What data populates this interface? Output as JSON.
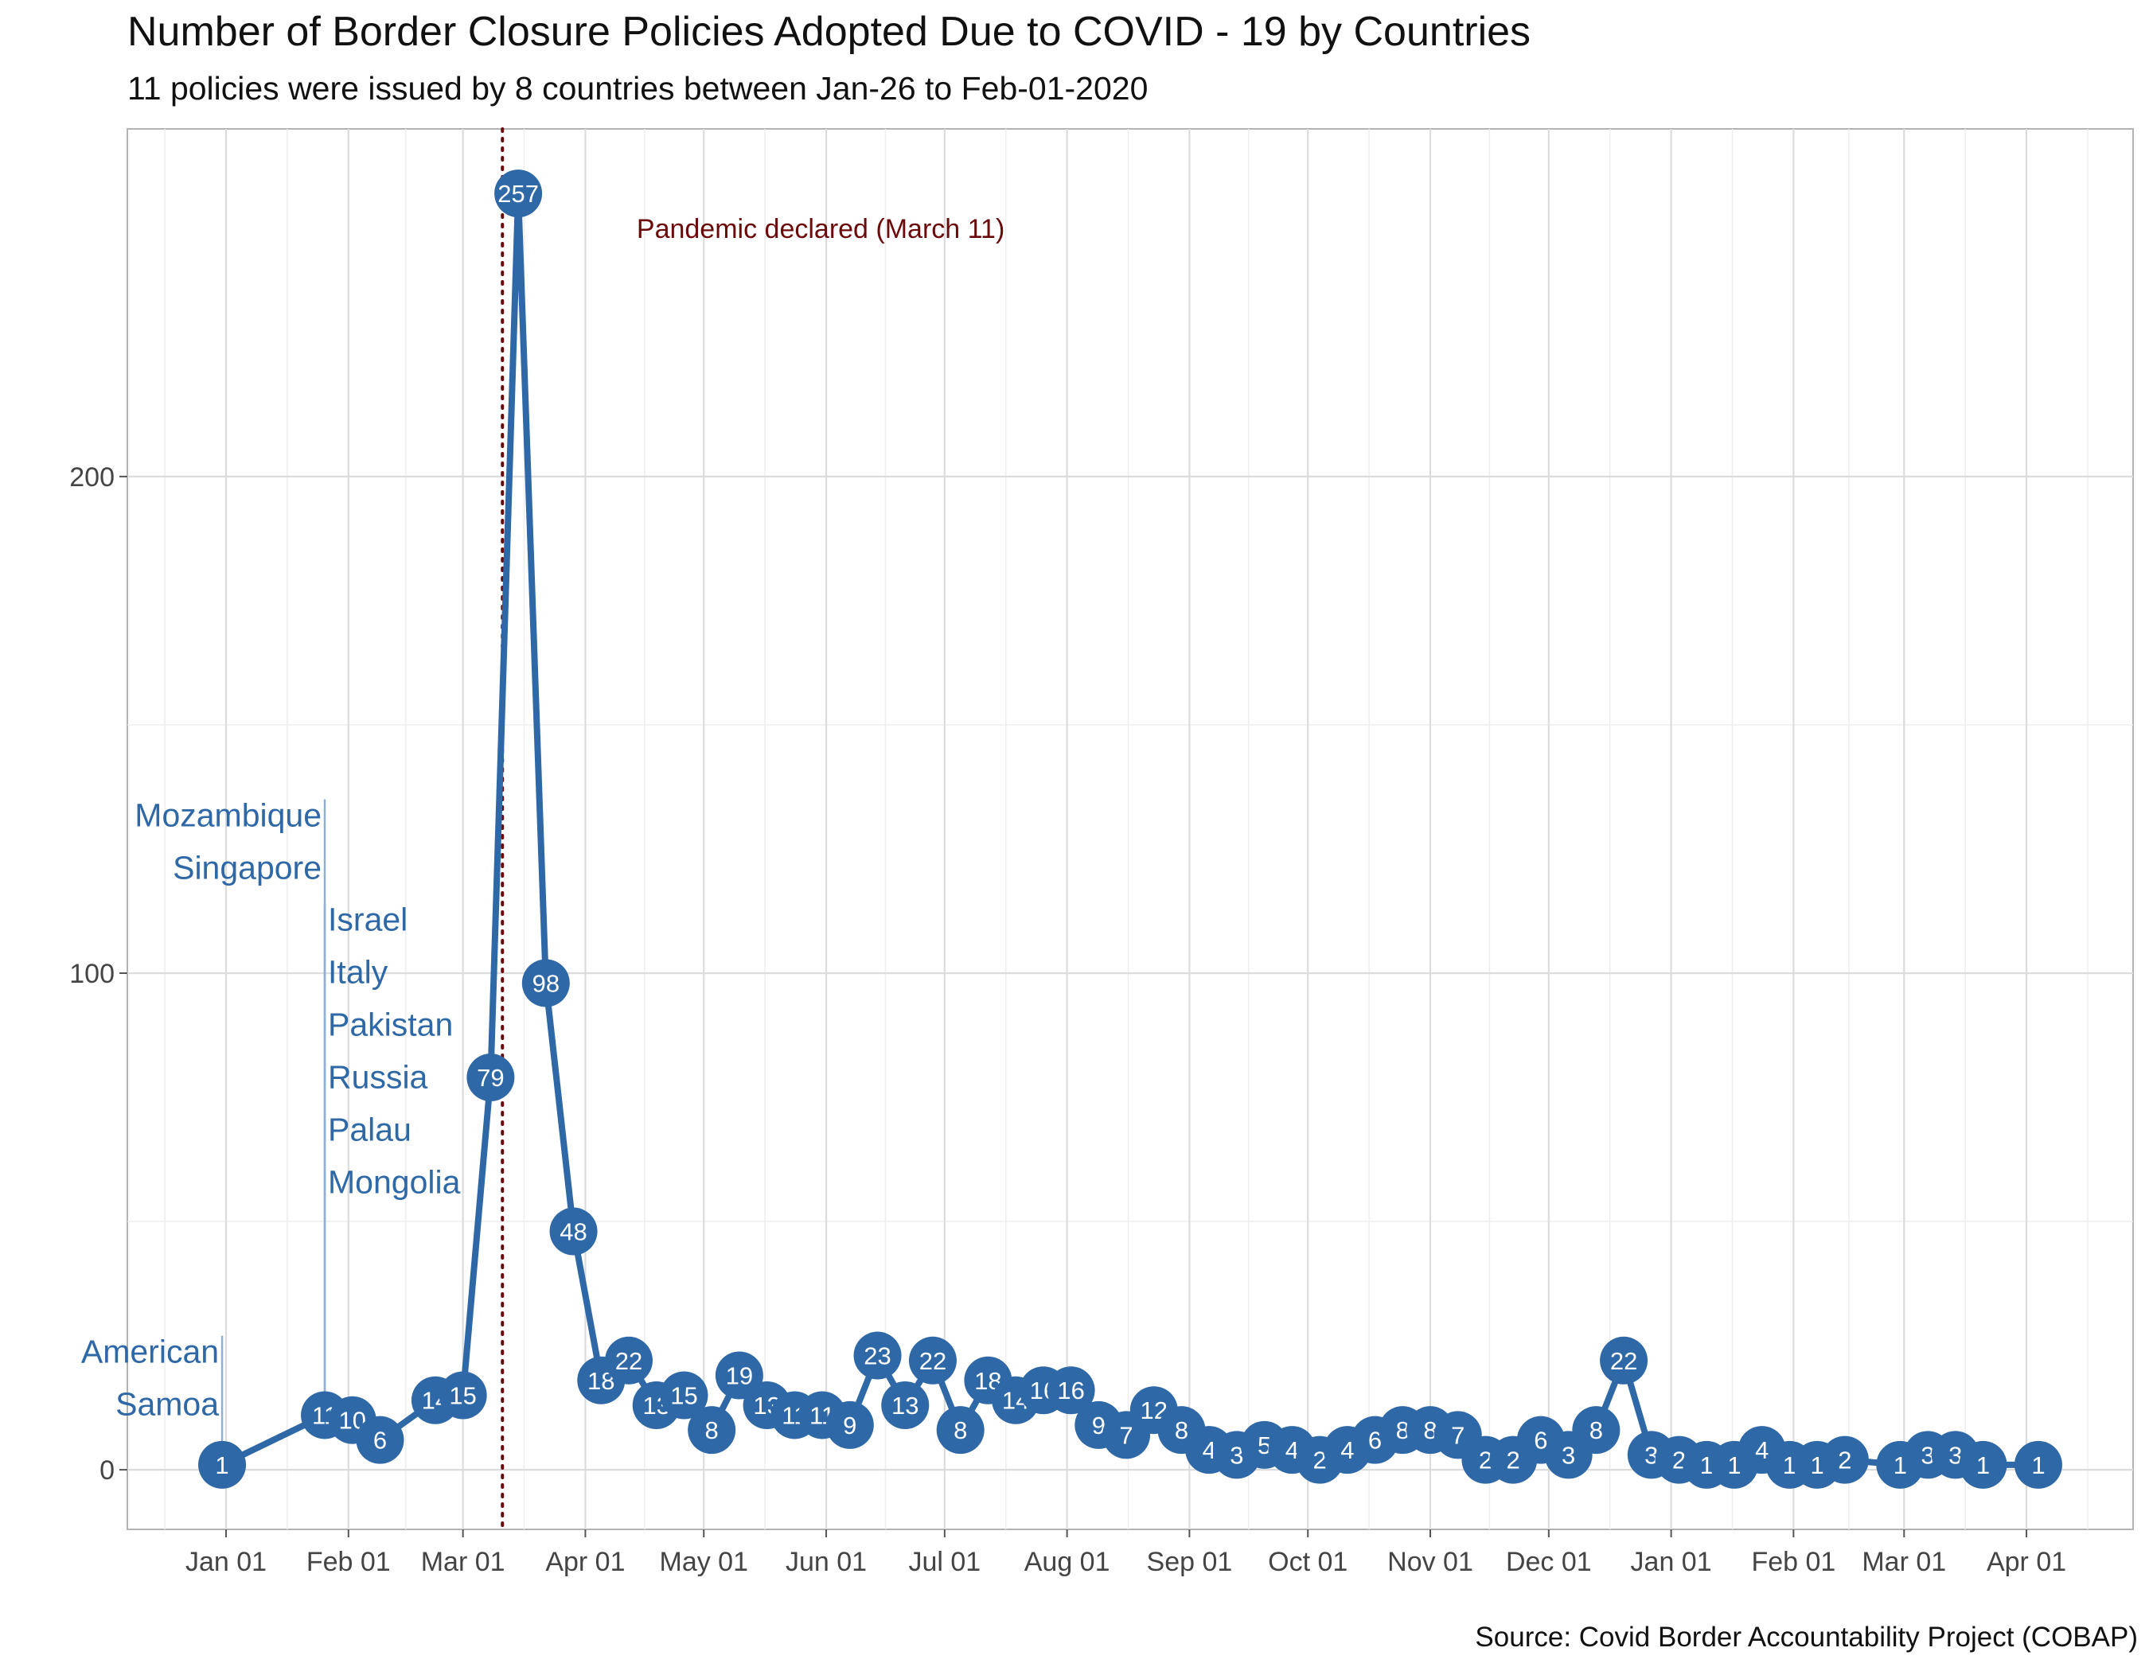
{
  "chart_data": {
    "type": "line",
    "title": "Number of Border Closure Policies Adopted Due to COVID - 19 by Countries",
    "subtitle": "11 policies were issued by 8 countries between Jan-26 to Feb-01-2020",
    "caption": "Source: Covid Border Accountability Project (COBAP)",
    "xlabel": "",
    "ylabel": "",
    "x_range": [
      "2019-12-07",
      "2021-04-28"
    ],
    "ylim": [
      -12,
      270
    ],
    "y_ticks": [
      0,
      100,
      200
    ],
    "x_ticks": [
      {
        "date": "2020-01-01",
        "label": "Jan 01"
      },
      {
        "date": "2020-02-01",
        "label": "Feb 01"
      },
      {
        "date": "2020-03-01",
        "label": "Mar 01"
      },
      {
        "date": "2020-04-01",
        "label": "Apr 01"
      },
      {
        "date": "2020-05-01",
        "label": "May 01"
      },
      {
        "date": "2020-06-01",
        "label": "Jun 01"
      },
      {
        "date": "2020-07-01",
        "label": "Jul 01"
      },
      {
        "date": "2020-08-01",
        "label": "Aug 01"
      },
      {
        "date": "2020-09-01",
        "label": "Sep 01"
      },
      {
        "date": "2020-10-01",
        "label": "Oct 01"
      },
      {
        "date": "2020-11-01",
        "label": "Nov 01"
      },
      {
        "date": "2020-12-01",
        "label": "Dec 01"
      },
      {
        "date": "2021-01-01",
        "label": "Jan 01"
      },
      {
        "date": "2021-02-01",
        "label": "Feb 01"
      },
      {
        "date": "2021-03-01",
        "label": "Mar 01"
      },
      {
        "date": "2021-04-01",
        "label": "Apr 01"
      }
    ],
    "grid": true,
    "line_color": "#2f68a7",
    "point_color": "#2f68a7",
    "series": [
      {
        "points": [
          {
            "x": "2019-12-31",
            "y": 1
          },
          {
            "x": "2020-01-26",
            "y": 11
          },
          {
            "x": "2020-02-02",
            "y": 10
          },
          {
            "x": "2020-02-09",
            "y": 6
          },
          {
            "x": "2020-02-23",
            "y": 14
          },
          {
            "x": "2020-03-01",
            "y": 15
          },
          {
            "x": "2020-03-08",
            "y": 79
          },
          {
            "x": "2020-03-15",
            "y": 257
          },
          {
            "x": "2020-03-22",
            "y": 98
          },
          {
            "x": "2020-03-29",
            "y": 48
          },
          {
            "x": "2020-04-05",
            "y": 18
          },
          {
            "x": "2020-04-12",
            "y": 22
          },
          {
            "x": "2020-04-19",
            "y": 13
          },
          {
            "x": "2020-04-26",
            "y": 15
          },
          {
            "x": "2020-05-03",
            "y": 8
          },
          {
            "x": "2020-05-10",
            "y": 19
          },
          {
            "x": "2020-05-17",
            "y": 13
          },
          {
            "x": "2020-05-24",
            "y": 11
          },
          {
            "x": "2020-05-31",
            "y": 11
          },
          {
            "x": "2020-06-07",
            "y": 9
          },
          {
            "x": "2020-06-14",
            "y": 23
          },
          {
            "x": "2020-06-21",
            "y": 13
          },
          {
            "x": "2020-06-28",
            "y": 22
          },
          {
            "x": "2020-07-05",
            "y": 8
          },
          {
            "x": "2020-07-12",
            "y": 18
          },
          {
            "x": "2020-07-19",
            "y": 14
          },
          {
            "x": "2020-07-26",
            "y": 16
          },
          {
            "x": "2020-08-02",
            "y": 16
          },
          {
            "x": "2020-08-09",
            "y": 9
          },
          {
            "x": "2020-08-16",
            "y": 7
          },
          {
            "x": "2020-08-23",
            "y": 12
          },
          {
            "x": "2020-08-30",
            "y": 8
          },
          {
            "x": "2020-09-06",
            "y": 4
          },
          {
            "x": "2020-09-13",
            "y": 3
          },
          {
            "x": "2020-09-20",
            "y": 5
          },
          {
            "x": "2020-09-27",
            "y": 4
          },
          {
            "x": "2020-10-04",
            "y": 2
          },
          {
            "x": "2020-10-11",
            "y": 4
          },
          {
            "x": "2020-10-18",
            "y": 6
          },
          {
            "x": "2020-10-25",
            "y": 8
          },
          {
            "x": "2020-11-01",
            "y": 8
          },
          {
            "x": "2020-11-08",
            "y": 7
          },
          {
            "x": "2020-11-15",
            "y": 2
          },
          {
            "x": "2020-11-22",
            "y": 2
          },
          {
            "x": "2020-11-29",
            "y": 6
          },
          {
            "x": "2020-12-06",
            "y": 3
          },
          {
            "x": "2020-12-13",
            "y": 8
          },
          {
            "x": "2020-12-20",
            "y": 22
          },
          {
            "x": "2020-12-27",
            "y": 3
          },
          {
            "x": "2021-01-03",
            "y": 2
          },
          {
            "x": "2021-01-10",
            "y": 1
          },
          {
            "x": "2021-01-17",
            "y": 1
          },
          {
            "x": "2021-01-24",
            "y": 4
          },
          {
            "x": "2021-01-31",
            "y": 1
          },
          {
            "x": "2021-02-07",
            "y": 1
          },
          {
            "x": "2021-02-14",
            "y": 2
          },
          {
            "x": "2021-02-28",
            "y": 1
          },
          {
            "x": "2021-03-07",
            "y": 3
          },
          {
            "x": "2021-03-14",
            "y": 3
          },
          {
            "x": "2021-03-21",
            "y": 1
          },
          {
            "x": "2021-04-04",
            "y": 1
          }
        ]
      }
    ],
    "reference_line": {
      "x": "2020-03-11",
      "style": "dotted",
      "color": "#6b0a0a"
    },
    "annotation": {
      "text": "Pandemic declared (March 11)",
      "x": "2020-04-14",
      "y": 250,
      "color": "#6b0a0a"
    },
    "country_callouts": [
      {
        "x": "2019-12-31",
        "y_top": 27,
        "countries": [
          "American",
          "Samoa"
        ],
        "anchor": "end"
      },
      {
        "x": "2020-01-26",
        "y_top": 135,
        "countries": [
          "Mozambique",
          "Singapore"
        ],
        "anchor": "end"
      },
      {
        "x": "2020-01-26",
        "y_top": 114,
        "countries": [
          "Israel",
          "Italy",
          "Pakistan",
          "Russia",
          "Palau",
          "Mongolia"
        ],
        "anchor": "start"
      }
    ]
  }
}
